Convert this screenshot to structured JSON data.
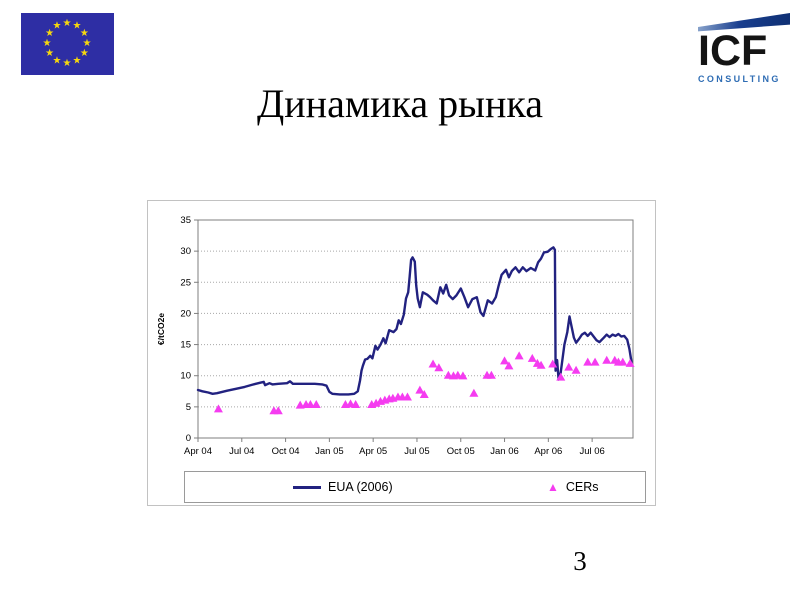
{
  "slide": {
    "title": "Динамика рынка",
    "page_number": "3"
  },
  "icf_logo": {
    "brand": "ICF",
    "tagline": "CONSULTING"
  },
  "chart_data": {
    "type": "line",
    "title": "",
    "xlabel": "",
    "ylabel": "€/tCO2e",
    "ylim": [
      0,
      35
    ],
    "yticks": [
      0,
      5,
      10,
      15,
      20,
      25,
      30,
      35
    ],
    "grid": "horizontal-dotted",
    "legend_position": "bottom",
    "x_unit": "months since Apr 2004",
    "xlim": [
      0,
      29.8
    ],
    "xticks": [
      {
        "pos": 0,
        "label": "Apr 04"
      },
      {
        "pos": 3,
        "label": "Jul 04"
      },
      {
        "pos": 6,
        "label": "Oct 04"
      },
      {
        "pos": 9,
        "label": "Jan 05"
      },
      {
        "pos": 12,
        "label": "Apr 05"
      },
      {
        "pos": 15,
        "label": "Jul 05"
      },
      {
        "pos": 18,
        "label": "Oct 05"
      },
      {
        "pos": 21,
        "label": "Jan 06"
      },
      {
        "pos": 24,
        "label": "Apr 06"
      },
      {
        "pos": 27,
        "label": "Jul 06"
      }
    ],
    "series": [
      {
        "name": "EUA (2006)",
        "type": "line",
        "color": "#222280",
        "points": [
          [
            0,
            7.7
          ],
          [
            0.3,
            7.5
          ],
          [
            0.7,
            7.3
          ],
          [
            1.0,
            7.1
          ],
          [
            1.3,
            7.2
          ],
          [
            2.0,
            7.6
          ],
          [
            2.6,
            7.9
          ],
          [
            3.2,
            8.2
          ],
          [
            3.8,
            8.6
          ],
          [
            4.3,
            8.9
          ],
          [
            4.5,
            9.0
          ],
          [
            4.6,
            8.5
          ],
          [
            4.9,
            8.8
          ],
          [
            5.1,
            8.6
          ],
          [
            5.5,
            8.7
          ],
          [
            6.1,
            8.8
          ],
          [
            6.3,
            9.1
          ],
          [
            6.5,
            8.7
          ],
          [
            7.2,
            8.7
          ],
          [
            8.0,
            8.7
          ],
          [
            8.5,
            8.6
          ],
          [
            8.8,
            8.4
          ],
          [
            9.0,
            7.4
          ],
          [
            9.2,
            7.1
          ],
          [
            9.7,
            7.0
          ],
          [
            10.3,
            7.0
          ],
          [
            10.7,
            7.1
          ],
          [
            10.95,
            7.5
          ],
          [
            11.1,
            9.2
          ],
          [
            11.2,
            10.8
          ],
          [
            11.3,
            11.6
          ],
          [
            11.45,
            12.6
          ],
          [
            11.6,
            12.7
          ],
          [
            11.8,
            13.2
          ],
          [
            11.95,
            12.8
          ],
          [
            12.15,
            14.8
          ],
          [
            12.3,
            14.2
          ],
          [
            12.5,
            15.0
          ],
          [
            12.7,
            16.0
          ],
          [
            12.85,
            15.2
          ],
          [
            13.1,
            17.3
          ],
          [
            13.4,
            17.0
          ],
          [
            13.6,
            17.5
          ],
          [
            13.75,
            18.9
          ],
          [
            13.9,
            18.3
          ],
          [
            14.1,
            19.8
          ],
          [
            14.25,
            22.4
          ],
          [
            14.4,
            23.4
          ],
          [
            14.5,
            26.0
          ],
          [
            14.6,
            28.6
          ],
          [
            14.7,
            29.0
          ],
          [
            14.85,
            28.3
          ],
          [
            14.95,
            24.5
          ],
          [
            15.05,
            22.4
          ],
          [
            15.2,
            21.0
          ],
          [
            15.4,
            23.4
          ],
          [
            15.7,
            23.0
          ],
          [
            15.9,
            22.6
          ],
          [
            16.1,
            22.1
          ],
          [
            16.35,
            21.6
          ],
          [
            16.6,
            24.2
          ],
          [
            16.8,
            23.2
          ],
          [
            17.0,
            24.6
          ],
          [
            17.2,
            22.9
          ],
          [
            17.45,
            22.3
          ],
          [
            17.7,
            22.9
          ],
          [
            18.0,
            24.0
          ],
          [
            18.25,
            22.6
          ],
          [
            18.5,
            21.0
          ],
          [
            18.8,
            22.3
          ],
          [
            19.1,
            22.6
          ],
          [
            19.35,
            20.2
          ],
          [
            19.55,
            19.6
          ],
          [
            19.85,
            22.1
          ],
          [
            20.15,
            21.6
          ],
          [
            20.4,
            22.6
          ],
          [
            20.6,
            24.5
          ],
          [
            20.8,
            26.2
          ],
          [
            21.1,
            27.0
          ],
          [
            21.3,
            25.8
          ],
          [
            21.5,
            26.8
          ],
          [
            21.75,
            27.4
          ],
          [
            22.0,
            26.6
          ],
          [
            22.25,
            27.4
          ],
          [
            22.5,
            26.8
          ],
          [
            22.8,
            27.3
          ],
          [
            23.1,
            26.9
          ],
          [
            23.3,
            28.2
          ],
          [
            23.5,
            28.8
          ],
          [
            23.7,
            29.8
          ],
          [
            23.95,
            29.9
          ],
          [
            24.15,
            30.3
          ],
          [
            24.35,
            30.6
          ],
          [
            24.45,
            30.2
          ],
          [
            24.5,
            10.8
          ],
          [
            24.6,
            12.5
          ],
          [
            24.7,
            9.4
          ],
          [
            24.85,
            10.5
          ],
          [
            25.1,
            15.0
          ],
          [
            25.3,
            17.0
          ],
          [
            25.45,
            19.5
          ],
          [
            25.6,
            17.8
          ],
          [
            25.75,
            16.1
          ],
          [
            25.9,
            15.3
          ],
          [
            26.1,
            15.9
          ],
          [
            26.3,
            16.6
          ],
          [
            26.5,
            16.9
          ],
          [
            26.7,
            16.4
          ],
          [
            26.9,
            16.9
          ],
          [
            27.1,
            16.3
          ],
          [
            27.3,
            15.7
          ],
          [
            27.5,
            15.4
          ],
          [
            27.8,
            16.1
          ],
          [
            28.0,
            16.6
          ],
          [
            28.2,
            16.2
          ],
          [
            28.4,
            16.6
          ],
          [
            28.6,
            16.4
          ],
          [
            28.8,
            16.7
          ],
          [
            29.0,
            16.3
          ],
          [
            29.2,
            16.4
          ],
          [
            29.4,
            15.8
          ],
          [
            29.55,
            14.3
          ],
          [
            29.7,
            12.2
          ]
        ]
      },
      {
        "name": "CERs",
        "type": "scatter",
        "marker": "triangle",
        "color": "#f53cf0",
        "points": [
          [
            1.4,
            4.6
          ],
          [
            5.2,
            4.3
          ],
          [
            5.5,
            4.3
          ],
          [
            7.0,
            5.2
          ],
          [
            7.4,
            5.3
          ],
          [
            7.7,
            5.3
          ],
          [
            8.1,
            5.3
          ],
          [
            10.1,
            5.3
          ],
          [
            10.45,
            5.4
          ],
          [
            10.8,
            5.3
          ],
          [
            11.9,
            5.3
          ],
          [
            12.2,
            5.5
          ],
          [
            12.5,
            5.8
          ],
          [
            12.8,
            6.0
          ],
          [
            13.1,
            6.2
          ],
          [
            13.35,
            6.3
          ],
          [
            13.7,
            6.5
          ],
          [
            14.0,
            6.5
          ],
          [
            14.35,
            6.5
          ],
          [
            15.2,
            7.6
          ],
          [
            15.5,
            6.9
          ],
          [
            16.1,
            11.8
          ],
          [
            16.5,
            11.2
          ],
          [
            17.15,
            10.0
          ],
          [
            17.5,
            9.9
          ],
          [
            17.8,
            10.0
          ],
          [
            18.15,
            9.9
          ],
          [
            18.9,
            7.1
          ],
          [
            19.8,
            10.0
          ],
          [
            20.1,
            10.0
          ],
          [
            21.0,
            12.3
          ],
          [
            21.3,
            11.5
          ],
          [
            22.0,
            13.1
          ],
          [
            22.9,
            12.7
          ],
          [
            23.25,
            11.9
          ],
          [
            23.5,
            11.6
          ],
          [
            24.3,
            11.8
          ],
          [
            24.85,
            9.7
          ],
          [
            25.4,
            11.3
          ],
          [
            25.9,
            10.8
          ],
          [
            26.7,
            12.1
          ],
          [
            27.2,
            12.1
          ],
          [
            28.0,
            12.4
          ],
          [
            28.55,
            12.4
          ],
          [
            28.8,
            12.1
          ],
          [
            29.1,
            12.1
          ],
          [
            29.6,
            11.9
          ]
        ]
      }
    ]
  }
}
